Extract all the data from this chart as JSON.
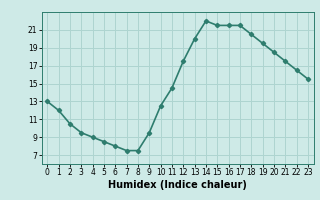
{
  "x": [
    0,
    1,
    2,
    3,
    4,
    5,
    6,
    7,
    8,
    9,
    10,
    11,
    12,
    13,
    14,
    15,
    16,
    17,
    18,
    19,
    20,
    21,
    22,
    23
  ],
  "y": [
    13,
    12,
    10.5,
    9.5,
    9,
    8.5,
    8,
    7.5,
    7.5,
    9.5,
    12.5,
    14.5,
    17.5,
    20,
    22,
    21.5,
    21.5,
    21.5,
    20.5,
    19.5,
    18.5,
    17.5,
    16.5,
    15.5
  ],
  "line_color": "#2e7d6e",
  "bg_color": "#ceeae7",
  "grid_color": "#aed4d0",
  "xlabel": "Humidex (Indice chaleur)",
  "ylim": [
    6,
    23
  ],
  "xlim": [
    -0.5,
    23.5
  ],
  "yticks": [
    7,
    9,
    11,
    13,
    15,
    17,
    19,
    21
  ],
  "xtick_labels": [
    "0",
    "1",
    "2",
    "3",
    "4",
    "5",
    "6",
    "7",
    "8",
    "9",
    "10",
    "11",
    "12",
    "13",
    "14",
    "15",
    "16",
    "17",
    "18",
    "19",
    "20",
    "21",
    "22",
    "23"
  ],
  "marker": "D",
  "marker_size": 2.2,
  "line_width": 1.2,
  "xlabel_fontsize": 7,
  "tick_fontsize": 5.5
}
